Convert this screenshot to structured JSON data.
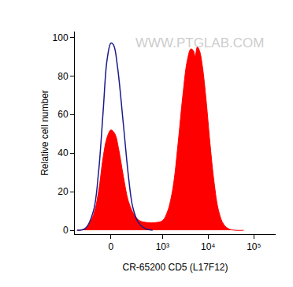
{
  "chart_data": {
    "type": "histogram_overlay",
    "x_label": "CR-65200 CD5 (L17F12)",
    "y_label": "Relative cell number",
    "watermark": "WWW.PTGLAB.COM",
    "xlim": [
      -450,
      300000
    ],
    "xticks": [
      0,
      {
        "value": 1000,
        "label": "10³"
      },
      {
        "value": 10000,
        "label": "10⁴"
      },
      {
        "value": 100000,
        "label": "10⁵"
      }
    ],
    "ylim": [
      -2,
      103
    ],
    "yticks": [
      0,
      20,
      40,
      60,
      80,
      100
    ],
    "grid": false,
    "series": [
      {
        "type": "area",
        "color": "#ff0000",
        "x": [
          -400,
          -250,
          -150,
          -100,
          -60,
          -30,
          0,
          30,
          60,
          100,
          150,
          220,
          300,
          450,
          700,
          1000,
          1300,
          1700,
          2200,
          2800,
          3500,
          4200,
          4800,
          5200,
          5800,
          6500,
          7500,
          9000,
          11000,
          13500,
          17000,
          22000,
          30000,
          60000
        ],
        "values": [
          0,
          1,
          8,
          20,
          38,
          48,
          52,
          50,
          42,
          28,
          15,
          8,
          5,
          4,
          4,
          5,
          10,
          22,
          45,
          70,
          88,
          94,
          93,
          90,
          95,
          93,
          85,
          68,
          45,
          25,
          10,
          3,
          0.5,
          0
        ]
      },
      {
        "type": "line",
        "color": "#1a1a8c",
        "x": [
          -400,
          -250,
          -150,
          -100,
          -60,
          -30,
          0,
          20,
          50,
          100,
          150,
          200,
          280,
          400,
          600
        ],
        "values": [
          0,
          1,
          10,
          30,
          62,
          88,
          97,
          96,
          85,
          55,
          28,
          12,
          4,
          1,
          0
        ]
      }
    ]
  }
}
